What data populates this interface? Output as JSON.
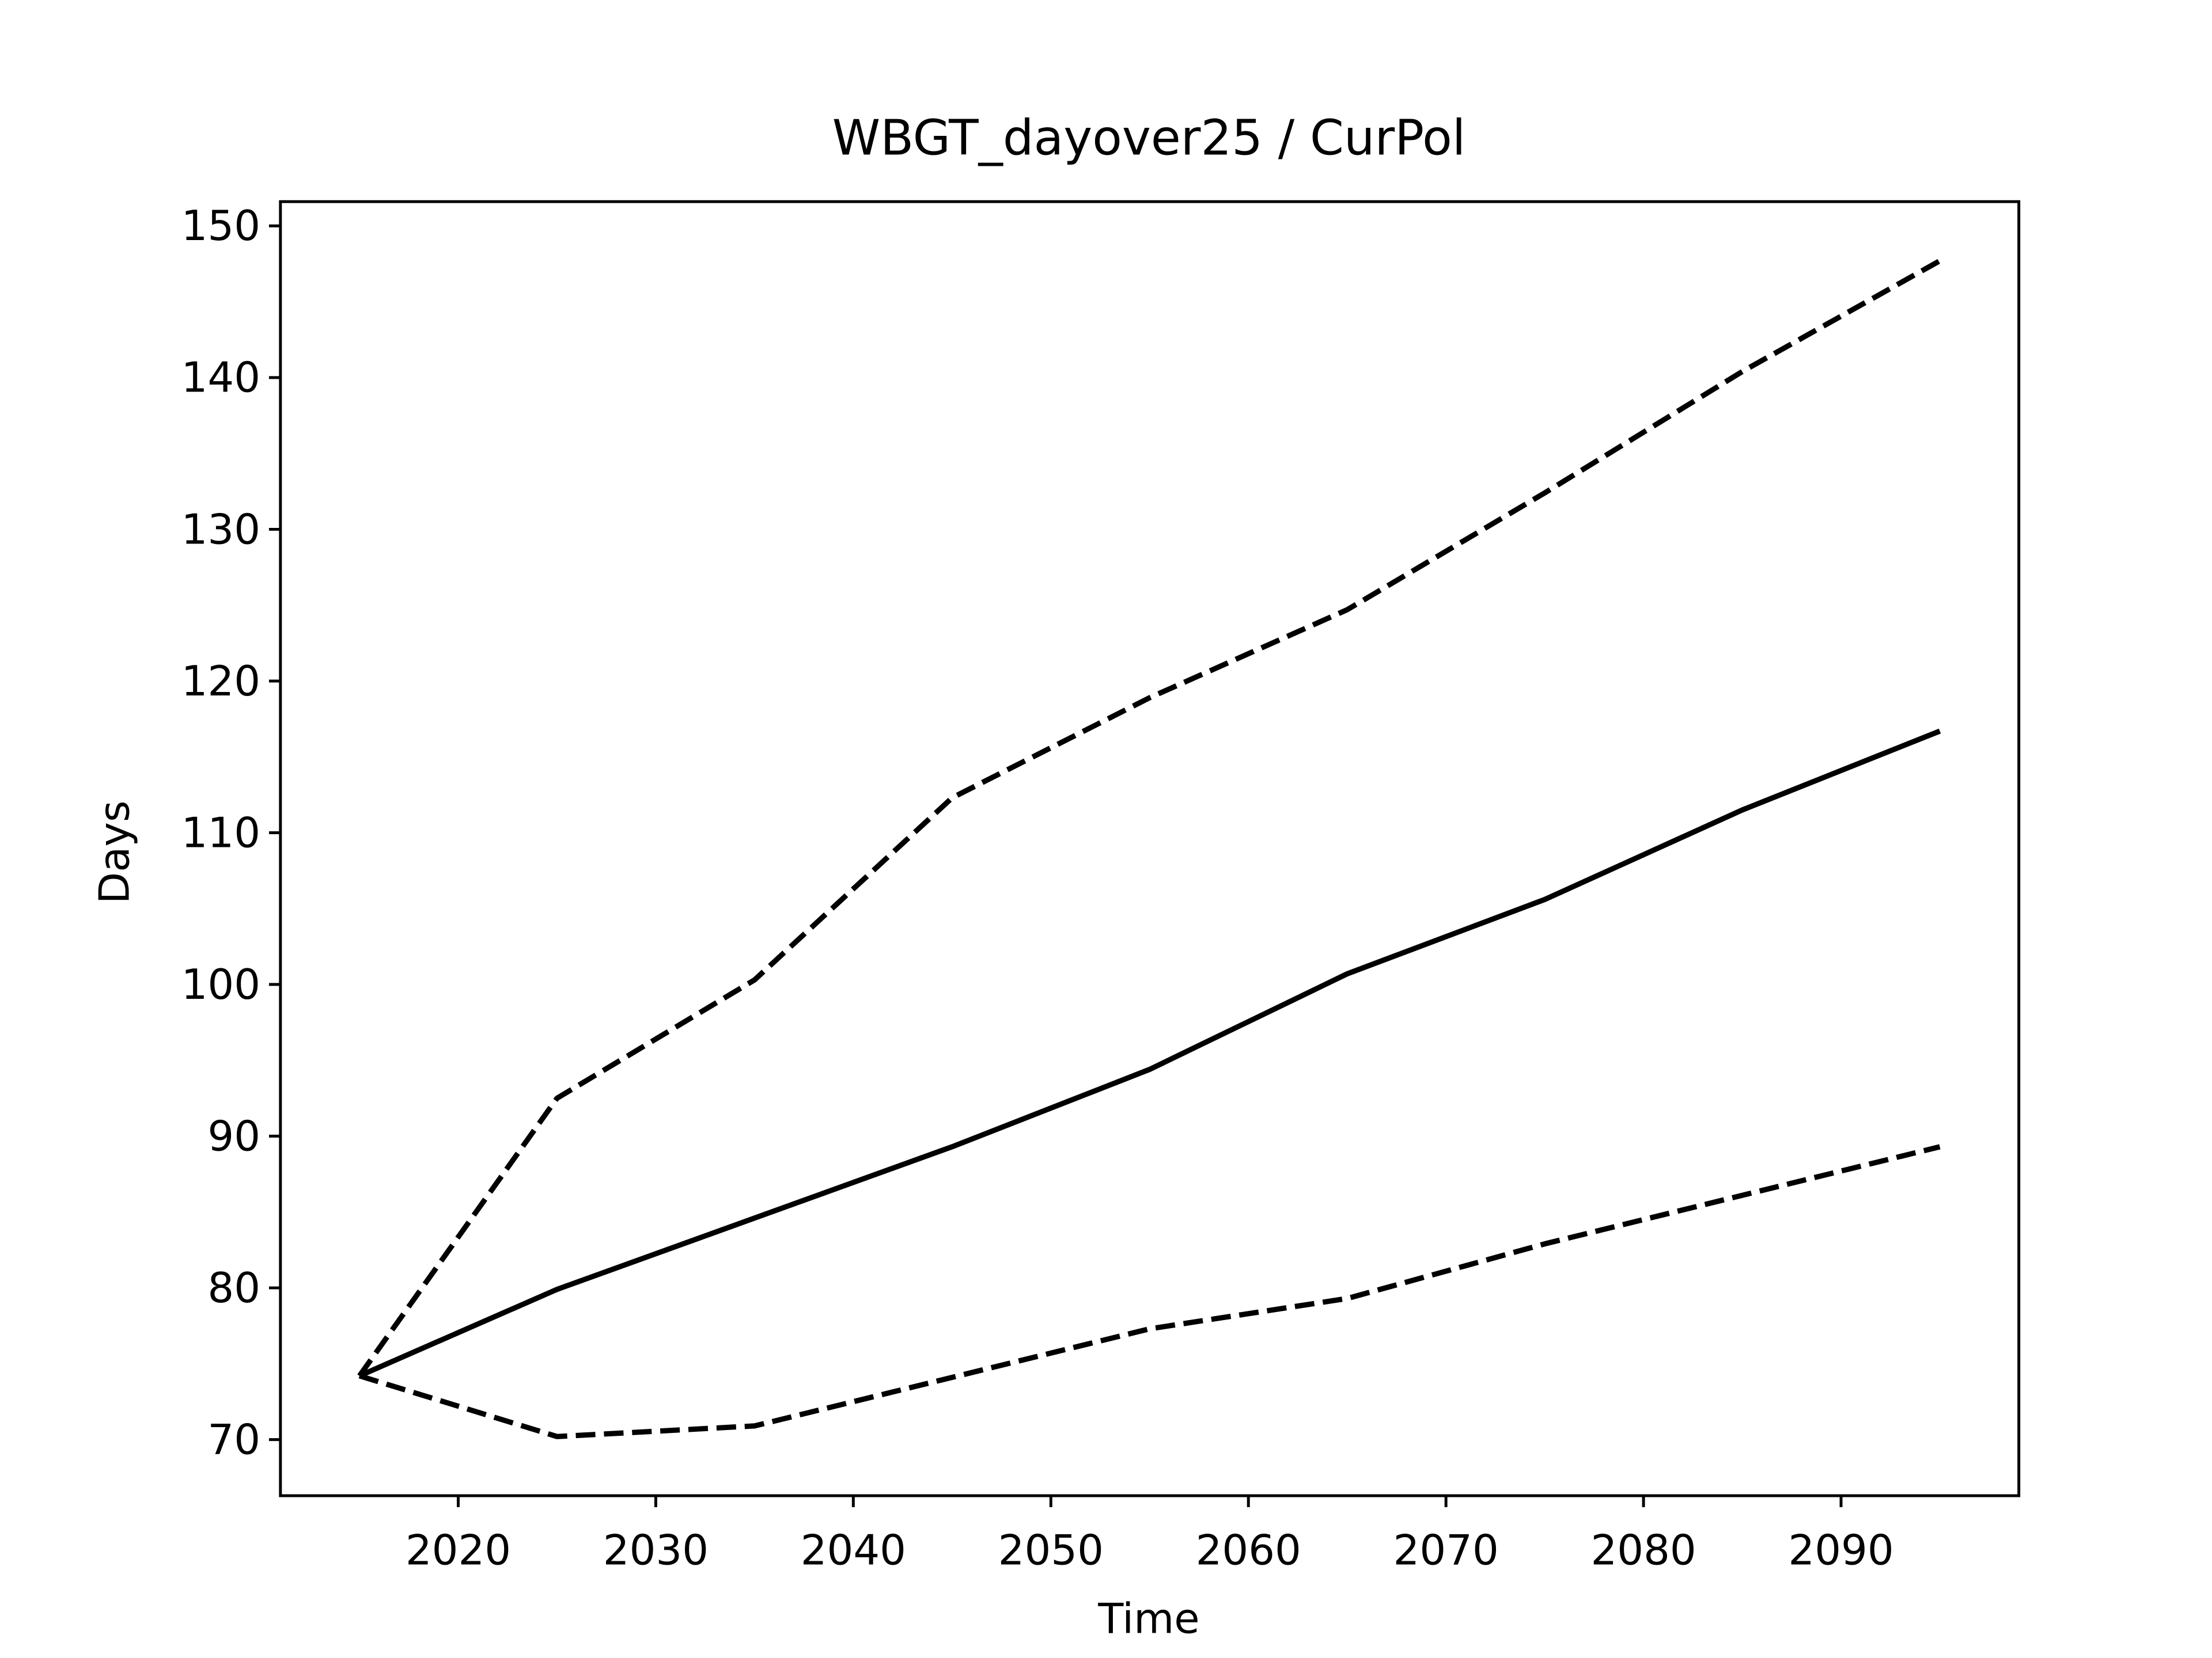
{
  "chart_data": {
    "type": "line",
    "title": "WBGT_dayover25 / CurPol",
    "xlabel": "Time",
    "ylabel": "Days",
    "x": [
      2015,
      2025,
      2035,
      2045,
      2055,
      2065,
      2075,
      2085,
      2095
    ],
    "series": [
      {
        "color": "#000000",
        "linestyle": "solid",
        "values": [
          74.2,
          79.9,
          84.6,
          89.3,
          94.4,
          100.7,
          105.6,
          111.5,
          116.7
        ]
      },
      {
        "color": "#000000",
        "linestyle": "dashed",
        "values": [
          74.2,
          92.5,
          100.3,
          112.3,
          118.9,
          124.7,
          132.4,
          140.4,
          147.7
        ]
      },
      {
        "color": "#000000",
        "linestyle": "dashed",
        "values": [
          74.2,
          70.2,
          70.9,
          74.1,
          77.3,
          79.3,
          82.9,
          86.1,
          89.3
        ]
      }
    ],
    "xlim": [
      2011,
      2099
    ],
    "xticks": [
      2020,
      2030,
      2040,
      2050,
      2060,
      2070,
      2080,
      2090
    ],
    "ylim": [
      66.3,
      151.6
    ],
    "yticks": [
      70,
      80,
      90,
      100,
      110,
      120,
      130,
      140,
      150
    ],
    "grid": false
  }
}
